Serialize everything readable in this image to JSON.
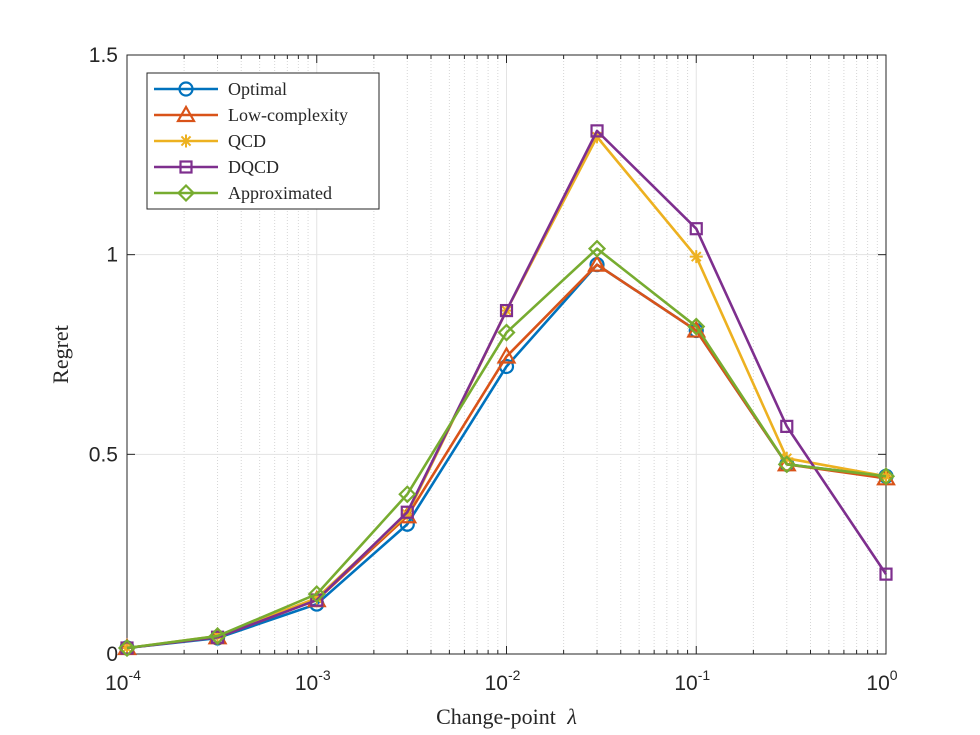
{
  "chart_data": {
    "type": "line",
    "xscale": "log",
    "x": [
      0.0001,
      0.0003,
      0.001,
      0.003,
      0.01,
      0.03,
      0.1,
      0.3,
      1
    ],
    "xlim": [
      0.0001,
      1
    ],
    "ylim": [
      0,
      1.5
    ],
    "grid": true,
    "xlabel": "Change-point",
    "xlabel_symbol": "λ",
    "ylabel": "Regret",
    "legend_position": "top-left",
    "x_tick_labels": [
      {
        "base": "10",
        "exp": "-4",
        "value": 0.0001
      },
      {
        "base": "10",
        "exp": "-3",
        "value": 0.001
      },
      {
        "base": "10",
        "exp": "-2",
        "value": 0.01
      },
      {
        "base": "10",
        "exp": "-1",
        "value": 0.1
      },
      {
        "base": "10",
        "exp": "0",
        "value": 1
      }
    ],
    "y_tick_labels": [
      {
        "label": "0",
        "value": 0
      },
      {
        "label": "0.5",
        "value": 0.5
      },
      {
        "label": "1",
        "value": 1
      },
      {
        "label": "1.5",
        "value": 1.5
      }
    ],
    "series": [
      {
        "name": "Optimal",
        "color": "#0072BD",
        "marker": "circle",
        "values": [
          0.015,
          0.04,
          0.125,
          0.325,
          0.72,
          0.975,
          0.81,
          0.475,
          0.445
        ]
      },
      {
        "name": "Low-complexity",
        "color": "#D95319",
        "marker": "triangle",
        "values": [
          0.015,
          0.042,
          0.135,
          0.345,
          0.745,
          0.975,
          0.81,
          0.475,
          0.44
        ]
      },
      {
        "name": "QCD",
        "color": "#EDB120",
        "marker": "asterisk",
        "values": [
          0.015,
          0.045,
          0.14,
          0.35,
          0.86,
          1.295,
          0.995,
          0.49,
          0.445
        ]
      },
      {
        "name": "DQCD",
        "color": "#7E2F8E",
        "marker": "square",
        "values": [
          0.015,
          0.042,
          0.135,
          0.355,
          0.86,
          1.31,
          1.065,
          0.57,
          0.2
        ]
      },
      {
        "name": "Approximated",
        "color": "#77AC30",
        "marker": "diamond",
        "values": [
          0.015,
          0.045,
          0.15,
          0.4,
          0.805,
          1.015,
          0.82,
          0.475,
          0.445
        ]
      }
    ]
  }
}
